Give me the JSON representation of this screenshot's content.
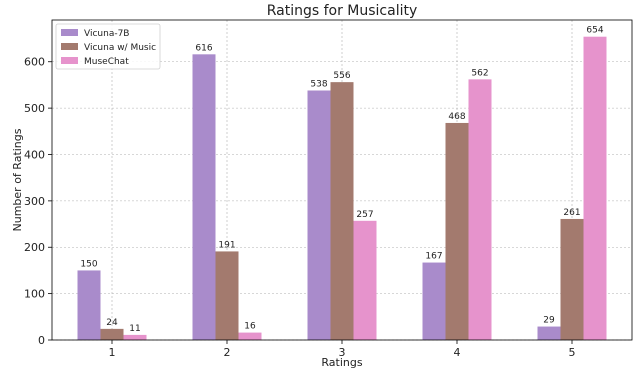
{
  "chart_data": {
    "type": "bar",
    "title": "Ratings for Musicality",
    "xlabel": "Ratings",
    "ylabel": "Number of Ratings",
    "categories": [
      "1",
      "2",
      "3",
      "4",
      "5"
    ],
    "ylim": [
      0,
      690
    ],
    "yticks": [
      0,
      100,
      200,
      300,
      400,
      500,
      600
    ],
    "grid": true,
    "legend_position": "top-left",
    "series": [
      {
        "name": "Vicuna-7B",
        "color": "#a98bcb",
        "values": [
          150,
          616,
          538,
          167,
          29
        ]
      },
      {
        "name": "Vicuna w/ Music",
        "color": "#a37a6e",
        "values": [
          24,
          191,
          556,
          468,
          261
        ]
      },
      {
        "name": "MuseChat",
        "color": "#e693cc",
        "values": [
          11,
          16,
          257,
          562,
          654
        ]
      }
    ]
  }
}
